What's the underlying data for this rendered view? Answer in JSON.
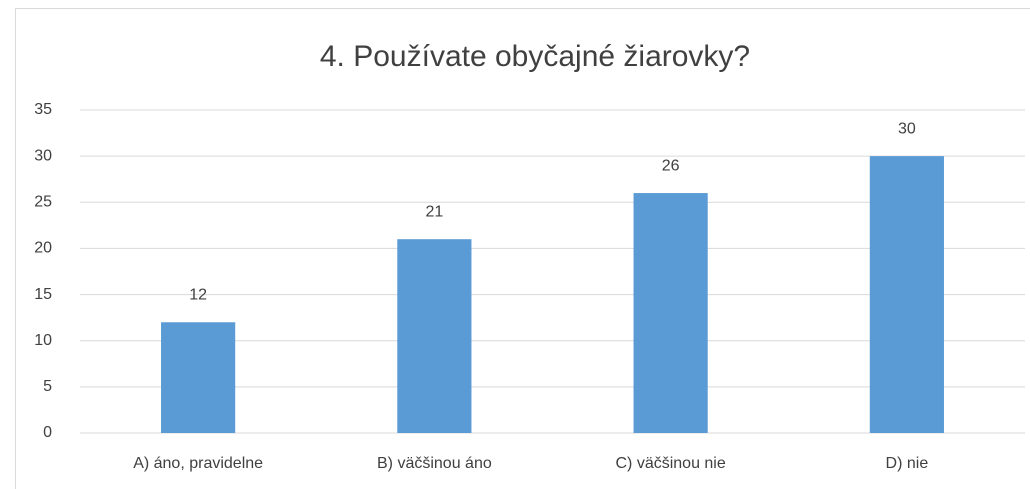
{
  "chart_data": {
    "type": "bar",
    "title": "4. Používate obyčajné žiarovky?",
    "categories": [
      "A) áno, pravidelne",
      "B) väčšinou áno",
      "C) väčšinou nie",
      "D) nie"
    ],
    "values": [
      12,
      21,
      26,
      30
    ],
    "color": "#5b9bd5",
    "ylim": [
      0,
      35
    ],
    "yticks": [
      0,
      5,
      10,
      15,
      20,
      25,
      30,
      35
    ],
    "grid": true,
    "data_labels": true
  }
}
